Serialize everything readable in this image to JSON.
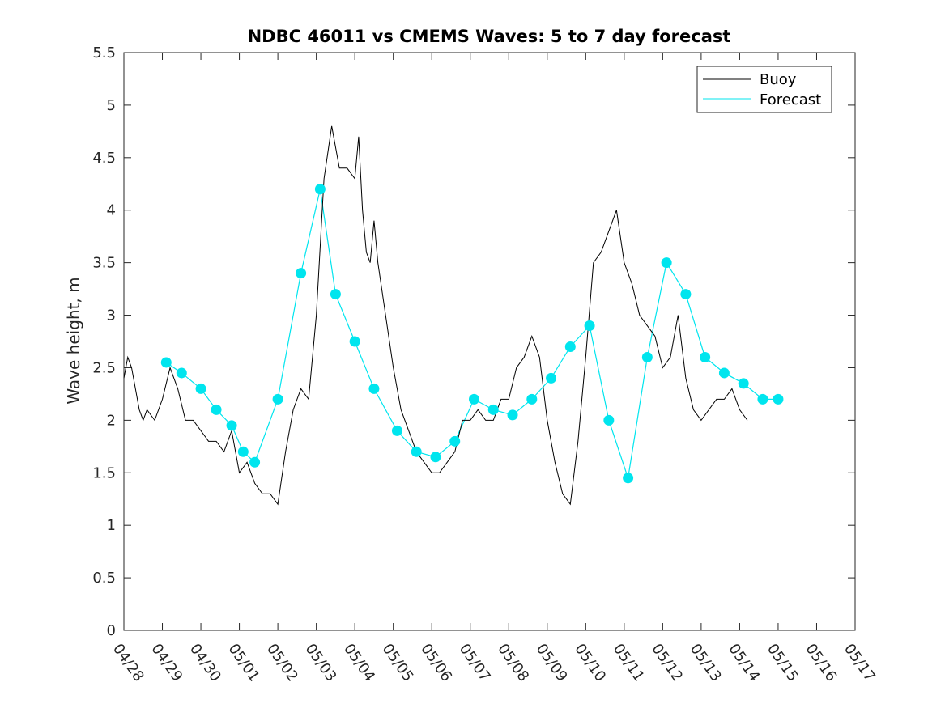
{
  "chart_data": {
    "type": "line",
    "title": "NDBC 46011 vs CMEMS Waves: 5 to 7 day forecast",
    "xlabel": "",
    "ylabel": "Wave height, m",
    "xlim": [
      "04/28",
      "05/17"
    ],
    "ylim": [
      0,
      5.5
    ],
    "x_ticks": [
      "04/28",
      "04/29",
      "04/30",
      "05/01",
      "05/02",
      "05/03",
      "05/04",
      "05/05",
      "05/06",
      "05/07",
      "05/08",
      "05/09",
      "05/10",
      "05/11",
      "05/12",
      "05/13",
      "05/14",
      "05/15",
      "05/16",
      "05/17"
    ],
    "y_ticks": [
      "0",
      "0.5",
      "1",
      "1.5",
      "2",
      "2.5",
      "3",
      "3.5",
      "4",
      "4.5",
      "5",
      "5.5"
    ],
    "grid": false,
    "legend_position": "top-right",
    "colors": {
      "buoy": "#000000",
      "forecast": "#00e5ee"
    },
    "series": [
      {
        "name": "Buoy",
        "x_day": [
          0,
          0.1,
          0.2,
          0.3,
          0.4,
          0.5,
          0.6,
          0.8,
          1.0,
          1.2,
          1.4,
          1.6,
          1.8,
          2.0,
          2.2,
          2.4,
          2.6,
          2.8,
          3.0,
          3.2,
          3.4,
          3.6,
          3.8,
          4.0,
          4.2,
          4.4,
          4.6,
          4.8,
          5.0,
          5.2,
          5.4,
          5.6,
          5.8,
          6.0,
          6.1,
          6.2,
          6.3,
          6.4,
          6.5,
          6.6,
          6.8,
          7.0,
          7.2,
          7.4,
          7.6,
          7.8,
          8.0,
          8.2,
          8.4,
          8.6,
          8.8,
          9.0,
          9.2,
          9.4,
          9.6,
          9.8,
          10.0,
          10.2,
          10.4,
          10.6,
          10.8,
          11.0,
          11.2,
          11.4,
          11.6,
          11.8,
          12.0,
          12.2,
          12.4,
          12.6,
          12.8,
          13.0,
          13.2,
          13.4,
          13.6,
          13.8,
          14.0,
          14.2,
          14.4,
          14.6,
          14.8,
          15.0,
          15.2,
          15.4,
          15.6,
          15.8,
          16.0,
          16.2
        ],
        "values": [
          2.4,
          2.6,
          2.5,
          2.3,
          2.1,
          2.0,
          2.1,
          2.0,
          2.2,
          2.5,
          2.3,
          2.0,
          2.0,
          1.9,
          1.8,
          1.8,
          1.7,
          1.9,
          1.5,
          1.6,
          1.4,
          1.3,
          1.3,
          1.2,
          1.7,
          2.1,
          2.3,
          2.2,
          3.0,
          4.3,
          4.8,
          4.4,
          4.4,
          4.3,
          4.7,
          4.0,
          3.6,
          3.5,
          3.9,
          3.5,
          3.0,
          2.5,
          2.1,
          1.9,
          1.7,
          1.6,
          1.5,
          1.5,
          1.6,
          1.7,
          2.0,
          2.0,
          2.1,
          2.0,
          2.0,
          2.2,
          2.2,
          2.5,
          2.6,
          2.8,
          2.6,
          2.0,
          1.6,
          1.3,
          1.2,
          1.8,
          2.6,
          3.5,
          3.6,
          3.8,
          4.0,
          3.5,
          3.3,
          3.0,
          2.9,
          2.8,
          2.5,
          2.6,
          3.0,
          2.4,
          2.1,
          2.0,
          2.1,
          2.2,
          2.2,
          2.3,
          2.1,
          2.0
        ]
      },
      {
        "name": "Forecast",
        "x_day": [
          1.1,
          1.5,
          2.0,
          2.4,
          2.8,
          3.1,
          3.4,
          4.0,
          4.6,
          5.1,
          5.5,
          6.0,
          6.5,
          7.1,
          7.6,
          8.1,
          8.6,
          9.1,
          9.6,
          10.1,
          10.6,
          11.1,
          11.6,
          12.1,
          12.6,
          13.1,
          13.6,
          14.1,
          14.6,
          15.1,
          15.6,
          16.1,
          16.6,
          17.0
        ],
        "values": [
          2.55,
          2.45,
          2.3,
          2.1,
          1.95,
          1.7,
          1.6,
          2.2,
          3.4,
          4.2,
          3.2,
          2.75,
          2.3,
          1.9,
          1.7,
          1.65,
          1.8,
          2.2,
          2.1,
          2.05,
          2.2,
          2.4,
          2.7,
          2.9,
          2.0,
          1.45,
          2.6,
          3.5,
          3.2,
          2.6,
          2.45,
          2.35,
          2.2,
          2.2
        ]
      }
    ]
  }
}
